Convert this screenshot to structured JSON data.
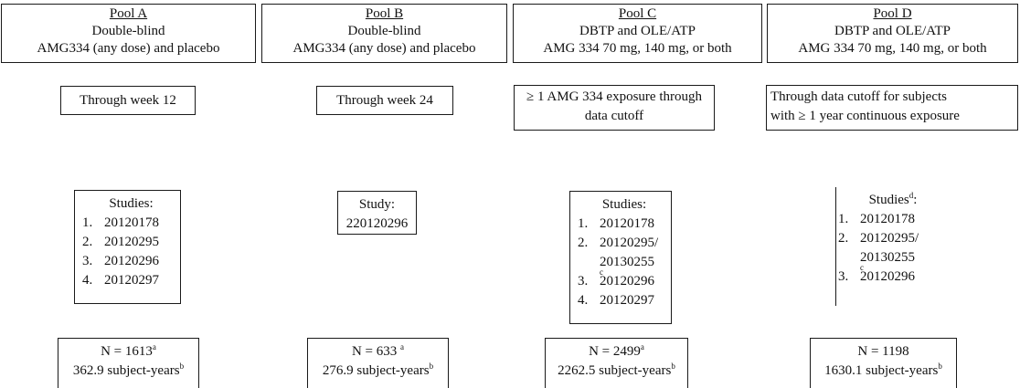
{
  "pools": [
    {
      "name": "Pool A",
      "design": "Double-blind",
      "treatment": "AMG334 (any dose) and placebo",
      "period": "Through week 12",
      "studies_heading": "Studies:",
      "studies_heading_sup": "",
      "studies": [
        {
          "num": "1.",
          "ids": [
            "20120178"
          ],
          "sup": ""
        },
        {
          "num": "2.",
          "ids": [
            "20120295"
          ],
          "sup": ""
        },
        {
          "num": "3.",
          "ids": [
            "20120296"
          ],
          "sup": ""
        },
        {
          "num": "4.",
          "ids": [
            "20120297"
          ],
          "sup": ""
        }
      ],
      "n_text": "N = 1613",
      "n_sup": "a",
      "subject_years": "362.9 subject-years",
      "subject_years_sup": "b"
    },
    {
      "name": "Pool B",
      "design": "Double-blind",
      "treatment": "AMG334 (any dose) and placebo",
      "period": "Through week 24",
      "studies_heading": "Study:",
      "studies_heading_sup": "",
      "single_study": "220120296",
      "n_text": "N = 633 ",
      "n_sup": "a",
      "subject_years": "276.9 subject-years",
      "subject_years_sup": "b"
    },
    {
      "name": "Pool C",
      "design": "DBTP and OLE/ATP",
      "treatment": "AMG 334 70 mg, 140 mg, or both",
      "period_line1": "≥ 1 AMG 334 exposure through",
      "period_line2": "data cutoff",
      "studies_heading": "Studies:",
      "studies_heading_sup": "",
      "studies": [
        {
          "num": "1.",
          "ids": [
            "20120178"
          ],
          "sup": ""
        },
        {
          "num": "2.",
          "ids": [
            "20120295/",
            "20130255"
          ],
          "sup": "c"
        },
        {
          "num": "3.",
          "ids": [
            "20120296"
          ],
          "sup": ""
        },
        {
          "num": "4.",
          "ids": [
            "20120297"
          ],
          "sup": ""
        }
      ],
      "n_text": "N = 2499",
      "n_sup": "a",
      "subject_years": "2262.5 subject-years",
      "subject_years_sup": "b"
    },
    {
      "name": "Pool D",
      "design": "DBTP and OLE/ATP",
      "treatment": "AMG 334 70 mg, 140 mg, or both",
      "period_line1": "Through data cutoff for subjects",
      "period_line2": "with ≥ 1 year continuous exposure",
      "studies_heading": "Studies",
      "studies_heading_sup": "d",
      "studies_heading_suffix": ":",
      "studies": [
        {
          "num": "1.",
          "ids": [
            "20120178"
          ],
          "sup": ""
        },
        {
          "num": "2.",
          "ids": [
            "20120295/",
            "20130255"
          ],
          "sup": "c"
        },
        {
          "num": "3.",
          "ids": [
            "20120296"
          ],
          "sup": ""
        }
      ],
      "n_text": "N = 1198",
      "n_sup": "",
      "subject_years": "1630.1 subject-years",
      "subject_years_sup": "b"
    }
  ]
}
